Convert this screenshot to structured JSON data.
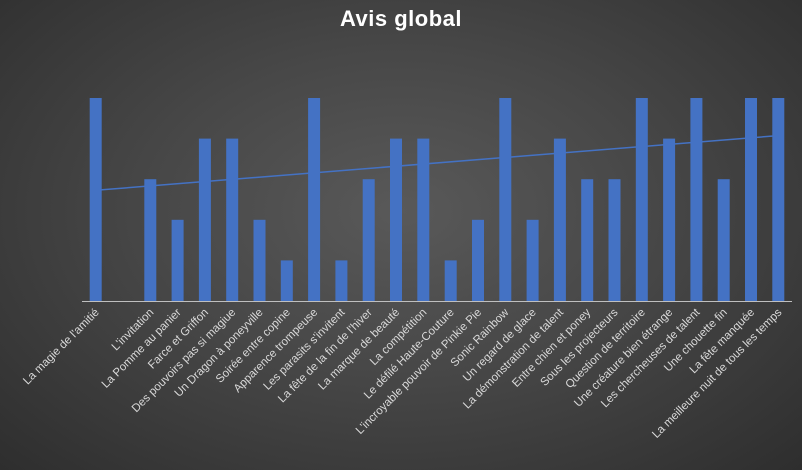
{
  "chart_data": {
    "type": "bar",
    "title": "Avis global",
    "xlabel": "",
    "ylabel": "",
    "ylim": [
      0,
      5
    ],
    "grid": false,
    "legend": "none",
    "trendline": "linear",
    "colors": {
      "bar": "#4472c4",
      "trend": "#4472c4",
      "axis": "#bfbfbf",
      "text": "#d9d9d9",
      "title": "#ffffff"
    },
    "categories": [
      "La magie de l'amitié",
      "L'invitation",
      "La Pomme au panier",
      "Farce et Griffon",
      "Des pouvoirs pas si magiue",
      "Un Dragon à poneyville",
      "Soirée entre copine",
      "Apparence trompeuse",
      "Les parasits s'invitent",
      "La fête de la fin de l'hiver",
      "La marque de beauté",
      "La compétition",
      "Le défilé Haute-Couture",
      "L'incroyable pouvoir de Pinkie Pie",
      "Sonic Rainbow",
      "Un regard de glace",
      "La démonstration de talent",
      "Entre chien et poney",
      "Sous les projecteurs",
      "Question de territoire",
      "Une créature bien étrange",
      "Les chercheuses de talent",
      "Une chouette fin",
      "La fête manquée",
      "La meilleure nuit de tous les temps"
    ],
    "values": [
      5,
      3,
      2,
      4,
      4,
      2,
      1,
      5,
      1,
      3,
      4,
      4,
      1,
      2,
      5,
      2,
      4,
      3,
      3,
      5,
      4,
      5,
      3,
      5,
      5
    ],
    "gaps_after": [
      0
    ]
  }
}
